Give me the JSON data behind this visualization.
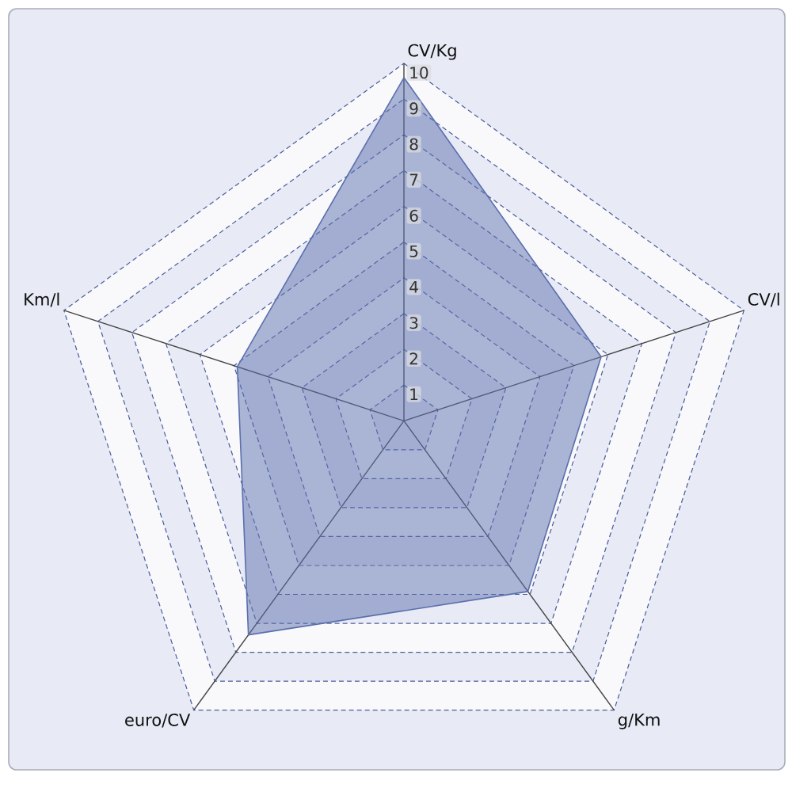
{
  "chart_data": {
    "type": "radar",
    "categories": [
      "CV/Kg",
      "CV/l",
      "g/Km",
      "euro/CV",
      "Km/l"
    ],
    "series": [
      {
        "color": "#5b6fae",
        "values": [
          9.6,
          5.8,
          5.9,
          7.4,
          4.9
        ]
      }
    ],
    "ylim": [
      0,
      10
    ],
    "yticks": [
      1,
      2,
      3,
      4,
      5,
      6,
      7,
      8,
      9,
      10
    ],
    "grid": true
  }
}
